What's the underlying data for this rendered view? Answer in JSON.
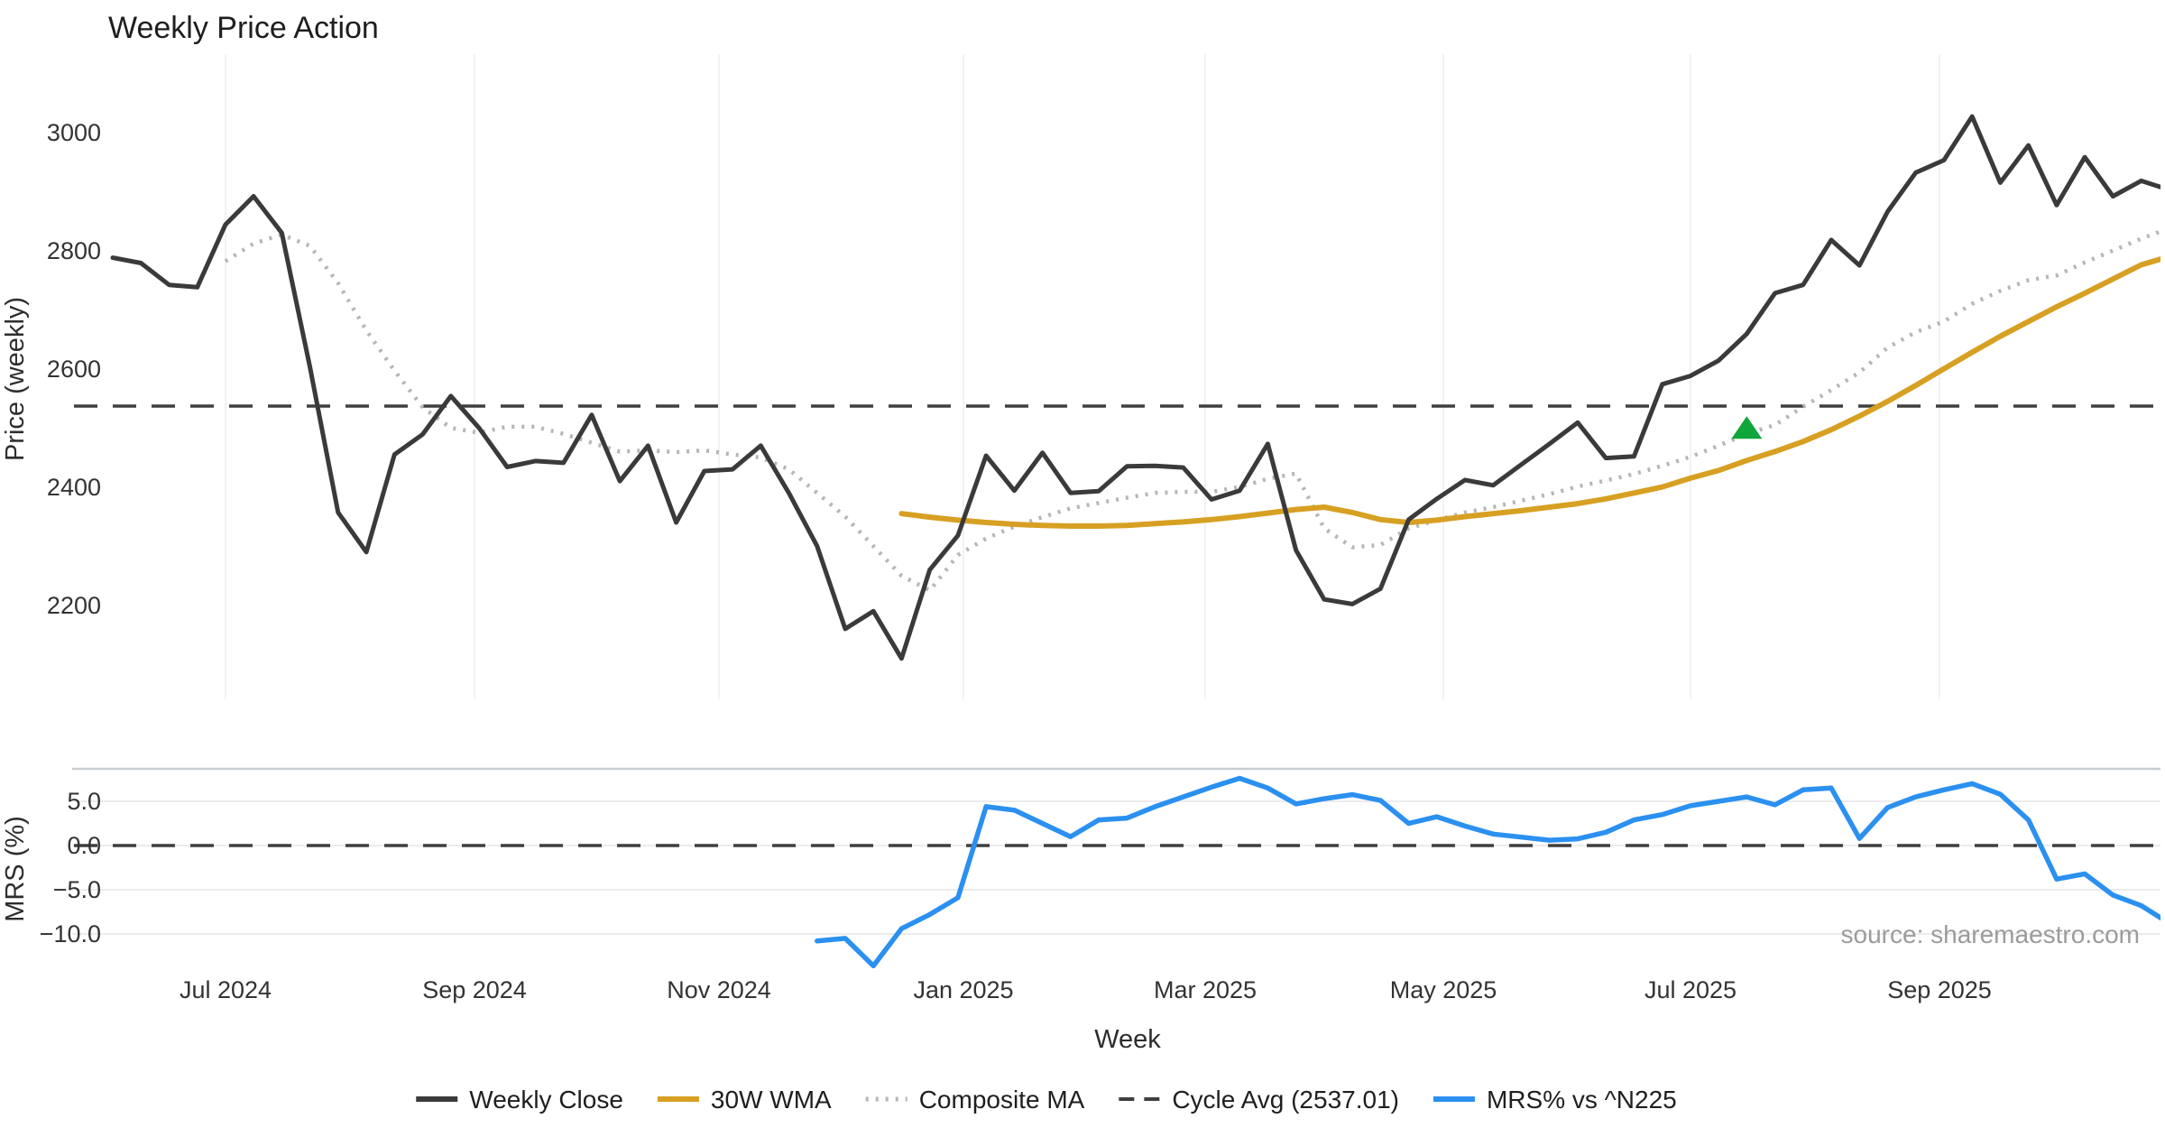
{
  "source_note": "source: sharemaestro.com",
  "colors": {
    "close": "#3a3a3a",
    "wma": "#d7a022",
    "composite": "#b6b6b6",
    "cycle": "#3f3f3f",
    "mrs": "#2b90f0",
    "marker_green": "#0fa63c",
    "gridline": "#f0f3f6",
    "hgridline": "#ececec",
    "panel_border": "#c8cdd2"
  },
  "chart_data": {
    "type": "line",
    "title": "Weekly Price Action",
    "xlabel": "Week",
    "x_start_date": "2024-06-03",
    "x_interval": "weekly",
    "n_points": 74,
    "x_tick_labels": [
      "Jul 2024",
      "Sep 2024",
      "Nov 2024",
      "Jan 2025",
      "Mar 2025",
      "May 2025",
      "Jul 2025",
      "Sep 2025"
    ],
    "panels": [
      {
        "id": "price",
        "ylabel": "Price (weekly)",
        "ylim": [
          2040,
          3135
        ],
        "yticks": [
          3000,
          2800,
          2600,
          2400,
          2200
        ],
        "ytick_labels": [
          "3000",
          "2800",
          "2600",
          "2400",
          "2200"
        ],
        "cycle_avg": 2537.01,
        "grid": "vertical-months"
      },
      {
        "id": "mrs",
        "ylabel": "MRS (%)",
        "ylim": [
          -14.5,
          8.7
        ],
        "yticks": [
          5.0,
          0.0,
          -5.0,
          -10.0
        ],
        "ytick_labels": [
          "5.0",
          "0.0",
          "−5.0",
          "−10.0"
        ],
        "zero_line": 0.0,
        "grid": "horizontal"
      }
    ],
    "series": [
      {
        "name": "Weekly Close",
        "panel": "price",
        "color": "#3a3a3a",
        "style": "solid",
        "width": 5,
        "start_index": 0,
        "values": [
          2788,
          2779,
          2742,
          2738,
          2844,
          2892,
          2830,
          2603,
          2357,
          2290,
          2455,
          2489,
          2554,
          2500,
          2434,
          2444,
          2441,
          2522,
          2410,
          2470,
          2340,
          2427,
          2430,
          2470,
          2390,
          2300,
          2160,
          2190,
          2110,
          2260,
          2318,
          2453,
          2394,
          2458,
          2390,
          2393,
          2435,
          2436,
          2433,
          2379,
          2394,
          2473,
          2293,
          2210,
          2202,
          2228,
          2345,
          2380,
          2412,
          2403,
          2438,
          2473,
          2509,
          2449,
          2452,
          2574,
          2588,
          2614,
          2659,
          2728,
          2742,
          2818,
          2775,
          2866,
          2932,
          2953,
          3027,
          2915,
          2978,
          2877,
          2958,
          2892,
          2918,
          2903
        ]
      },
      {
        "name": "30W WMA",
        "panel": "price",
        "color": "#d7a022",
        "style": "solid",
        "width": 6,
        "start_index": 28,
        "values": [
          2355,
          2349,
          2344,
          2340,
          2337,
          2335,
          2334,
          2334,
          2335,
          2338,
          2341,
          2345,
          2350,
          2356,
          2362,
          2366,
          2357,
          2345,
          2340,
          2344,
          2350,
          2355,
          2360,
          2366,
          2372,
          2380,
          2390,
          2400,
          2415,
          2428,
          2445,
          2460,
          2477,
          2497,
          2520,
          2545,
          2572,
          2600,
          2628,
          2655,
          2680,
          2705,
          2728,
          2752,
          2776,
          2790
        ]
      },
      {
        "name": "Composite MA",
        "panel": "price",
        "color": "#b6b6b6",
        "style": "dotted",
        "width": 4.5,
        "start_index": 4,
        "values": [
          2782,
          2812,
          2827,
          2808,
          2745,
          2665,
          2597,
          2535,
          2500,
          2492,
          2502,
          2502,
          2490,
          2475,
          2460,
          2462,
          2459,
          2462,
          2455,
          2450,
          2430,
          2390,
          2350,
          2300,
          2250,
          2225,
          2285,
          2313,
          2333,
          2349,
          2364,
          2373,
          2382,
          2390,
          2392,
          2392,
          2400,
          2414,
          2423,
          2330,
          2298,
          2302,
          2330,
          2344,
          2357,
          2366,
          2377,
          2388,
          2401,
          2411,
          2422,
          2436,
          2451,
          2470,
          2490,
          2505,
          2536,
          2564,
          2594,
          2636,
          2662,
          2680,
          2710,
          2732,
          2750,
          2758,
          2780,
          2800,
          2820,
          2838
        ]
      },
      {
        "name": "Cycle Avg (2537.01)",
        "panel": "price",
        "color": "#3f3f3f",
        "style": "dashed",
        "width": 3.5,
        "value": 2537.01
      },
      {
        "name": "MRS% vs ^N225",
        "panel": "mrs",
        "color": "#2b90f0",
        "style": "solid",
        "width": 5.5,
        "start_index": 25,
        "values": [
          -10.8,
          -10.5,
          -13.6,
          -9.4,
          -7.8,
          -5.9,
          4.4,
          4.0,
          2.5,
          1.0,
          2.9,
          3.1,
          4.4,
          5.5,
          6.6,
          7.6,
          6.5,
          4.7,
          5.3,
          5.75,
          5.1,
          2.5,
          3.25,
          2.2,
          1.3,
          0.95,
          0.6,
          0.75,
          1.5,
          2.9,
          3.5,
          4.5,
          5.0,
          5.5,
          4.6,
          6.3,
          6.5,
          0.8,
          4.3,
          5.5,
          6.3,
          7.0,
          5.8,
          2.9,
          -3.8,
          -3.2,
          -5.6,
          -6.8,
          -8.8
        ]
      }
    ],
    "marker": {
      "type": "triangle-up",
      "name": "signal-marker",
      "color": "#0fa63c",
      "week_index": 58,
      "value": 2500
    },
    "legend_position": "bottom-center"
  }
}
